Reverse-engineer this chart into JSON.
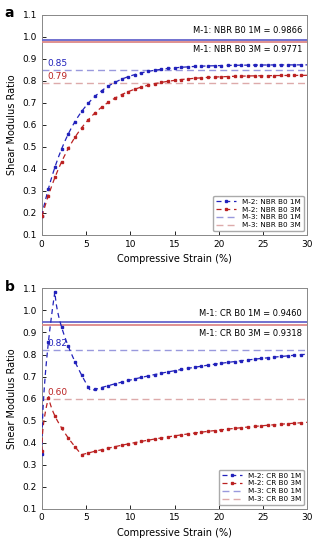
{
  "fig_width": 3.2,
  "fig_height": 5.45,
  "dpi": 100,
  "bg_color": "#ffffff",
  "ax_bg_color": "#ffffff",
  "panel_a": {
    "label": "a",
    "ylim": [
      0.1,
      1.1
    ],
    "xlim": [
      0,
      30
    ],
    "yticks": [
      0.1,
      0.2,
      0.3,
      0.4,
      0.5,
      0.6,
      0.7,
      0.8,
      0.9,
      1.0,
      1.1
    ],
    "xticks": [
      0,
      5,
      10,
      15,
      20,
      25,
      30
    ],
    "ylabel": "Shear Modulus Ratio",
    "xlabel": "Compressive Strain (%)",
    "M1_1M_value": 0.9866,
    "M1_3M_value": 0.9771,
    "M3_1M_value": 0.85,
    "M3_3M_value": 0.79,
    "M1_1M_color": "#6666cc",
    "M1_3M_color": "#dd8888",
    "M2_1M_color": "#2222bb",
    "M2_3M_color": "#bb2222",
    "M3_1M_color": "#9999dd",
    "M3_3M_color": "#ddaaaa",
    "annotation_1M": "0.85",
    "annotation_3M": "0.79",
    "legend_labels": [
      "M-2: NBR B0 1M",
      "M-2: NBR B0 3M",
      "M-3: NBR B0 1M",
      "M-3: NBR B0 3M"
    ],
    "title_text_1M": "M-1: NBR B0 1M = 0.9866",
    "title_text_3M": "M-1: NBR B0 3M = 0.9771"
  },
  "panel_b": {
    "label": "b",
    "ylim": [
      0.1,
      1.1
    ],
    "xlim": [
      0,
      30
    ],
    "yticks": [
      0.1,
      0.2,
      0.3,
      0.4,
      0.5,
      0.6,
      0.7,
      0.8,
      0.9,
      1.0,
      1.1
    ],
    "xticks": [
      0,
      5,
      10,
      15,
      20,
      25,
      30
    ],
    "ylabel": "Shear Modulus Ratio",
    "xlabel": "Compressive Strain (%)",
    "M1_1M_value": 0.946,
    "M1_3M_value": 0.9318,
    "M3_1M_value": 0.82,
    "M3_3M_value": 0.6,
    "M1_1M_color": "#6666cc",
    "M1_3M_color": "#dd8888",
    "M2_1M_color": "#2222bb",
    "M2_3M_color": "#bb2222",
    "M3_1M_color": "#9999dd",
    "M3_3M_color": "#ddaaaa",
    "annotation_1M": "0.82",
    "annotation_3M": "0.60",
    "legend_labels": [
      "M-2: CR B0 1M",
      "M-2: CR B0 3M",
      "M-3: CR B0 1M",
      "M-3: CR B0 3M"
    ],
    "title_text_1M": "M-1: CR B0 1M = 0.9460",
    "title_text_3M": "M-1: CR B0 3M = 0.9318"
  }
}
